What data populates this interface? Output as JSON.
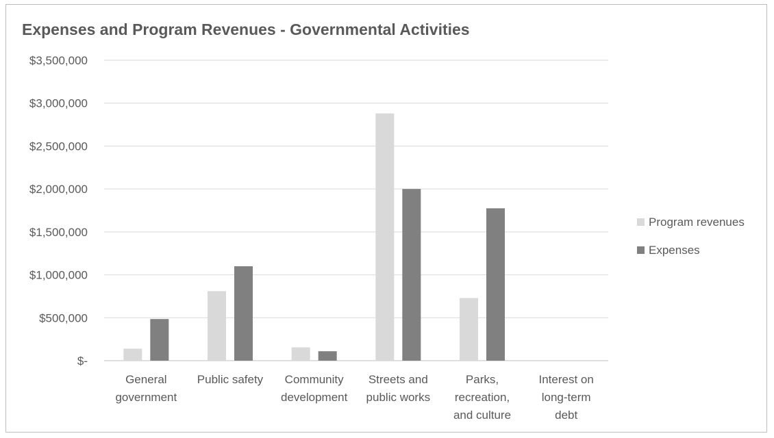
{
  "chart_data": {
    "type": "bar",
    "title": "Expenses and Program Revenues - Governmental Activities",
    "categories": [
      [
        "General",
        "government"
      ],
      [
        "Public safety"
      ],
      [
        "Community",
        "development"
      ],
      [
        "Streets and",
        "public works"
      ],
      [
        "Parks,",
        "recreation,",
        "and culture"
      ],
      [
        "Interest on",
        "long-term",
        "debt"
      ]
    ],
    "series": [
      {
        "name": "Program revenues",
        "color": "#d9d9d9",
        "values": [
          140000,
          810000,
          155000,
          2880000,
          730000,
          0
        ]
      },
      {
        "name": "Expenses",
        "color": "#808080",
        "values": [
          485000,
          1100000,
          110000,
          2000000,
          1775000,
          0
        ]
      }
    ],
    "ylim": [
      0,
      3500000
    ],
    "yticks": [
      {
        "value": 0,
        "label": "$-"
      },
      {
        "value": 500000,
        "label": "$500,000"
      },
      {
        "value": 1000000,
        "label": "$1,000,000"
      },
      {
        "value": 1500000,
        "label": "$1,500,000"
      },
      {
        "value": 2000000,
        "label": "$2,000,000"
      },
      {
        "value": 2500000,
        "label": "$2,500,000"
      },
      {
        "value": 3000000,
        "label": "$3,000,000"
      },
      {
        "value": 3500000,
        "label": "$3,500,000"
      }
    ],
    "grid": true,
    "legend_position": "right"
  }
}
